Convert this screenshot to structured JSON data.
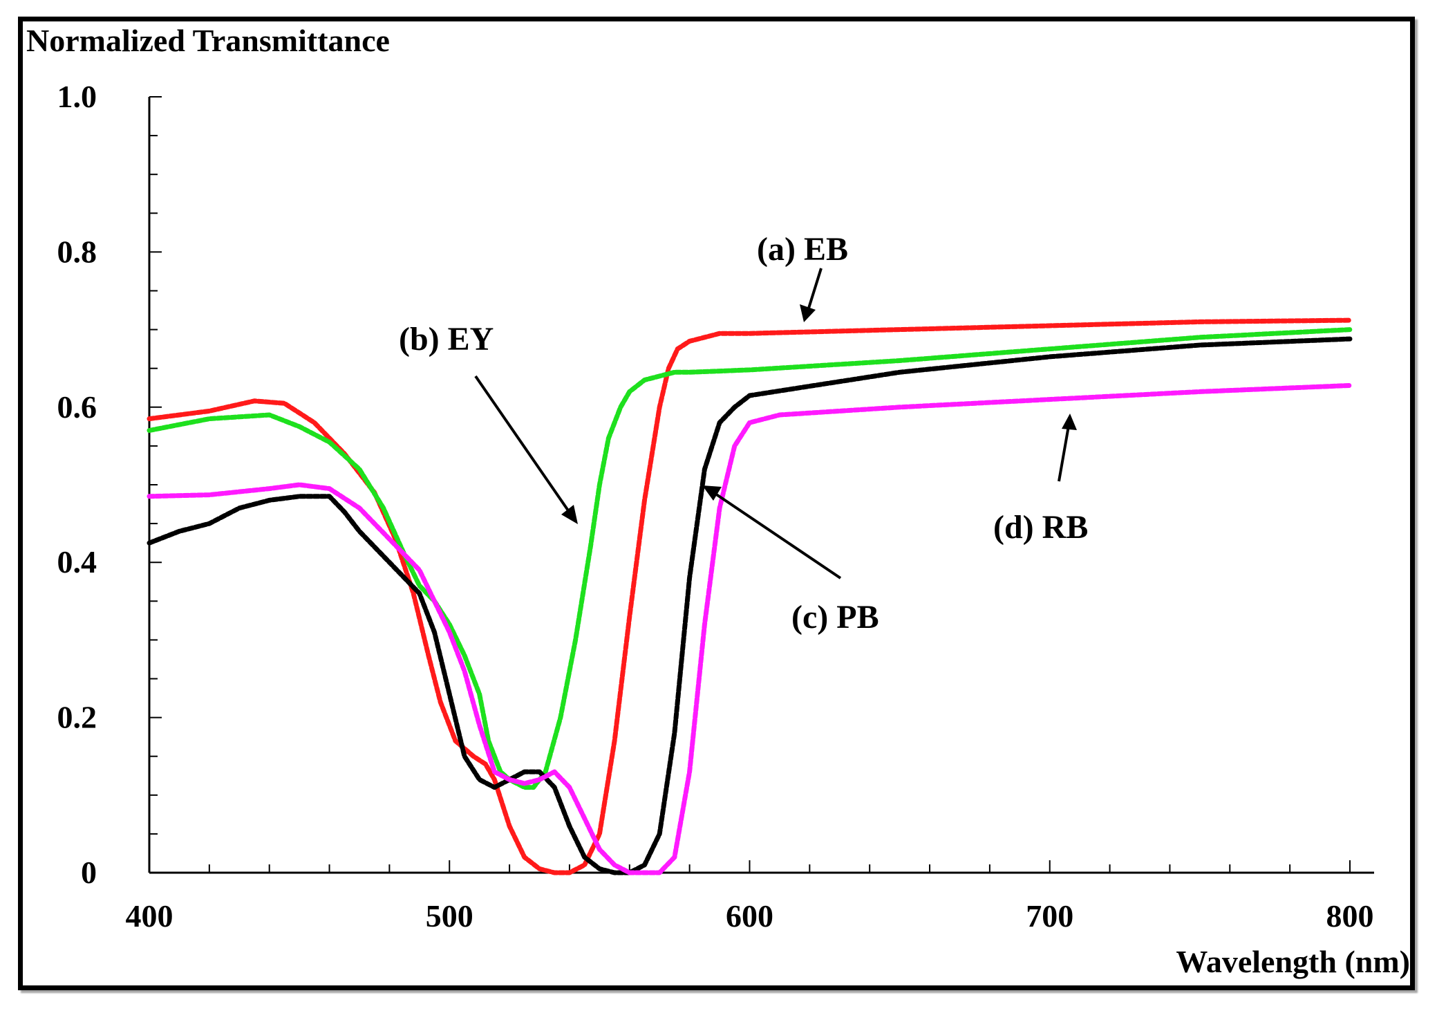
{
  "chart_data": {
    "type": "line",
    "title": "",
    "ylabel": "Normalized Transmittance",
    "xlabel": "Wavelength (nm)",
    "xlim": [
      400,
      800
    ],
    "ylim": [
      0,
      1.0
    ],
    "x_ticks": [
      400,
      500,
      600,
      700,
      800
    ],
    "x_tick_labels": [
      "400",
      "500",
      "600",
      "700",
      "800"
    ],
    "y_ticks": [
      0,
      0.2,
      0.4,
      0.6,
      0.8,
      1.0
    ],
    "y_tick_labels": [
      "0",
      "0.2",
      "0.4",
      "0.6",
      "0.8",
      "1.0"
    ],
    "grid": false,
    "series": [
      {
        "name": "(a) EB",
        "color": "#ff1a1a",
        "x": [
          400,
          420,
          435,
          445,
          455,
          465,
          475,
          482,
          488,
          493,
          497,
          502,
          508,
          512,
          515,
          520,
          525,
          530,
          535,
          540,
          545,
          550,
          555,
          560,
          565,
          570,
          573,
          576,
          580,
          585,
          590,
          600,
          650,
          700,
          750,
          800
        ],
        "y": [
          0.585,
          0.595,
          0.608,
          0.605,
          0.58,
          0.54,
          0.49,
          0.43,
          0.36,
          0.28,
          0.22,
          0.17,
          0.15,
          0.14,
          0.12,
          0.06,
          0.02,
          0.005,
          0.0,
          0.0,
          0.01,
          0.05,
          0.17,
          0.33,
          0.48,
          0.6,
          0.65,
          0.675,
          0.685,
          0.69,
          0.695,
          0.695,
          0.7,
          0.705,
          0.71,
          0.712
        ]
      },
      {
        "name": "(b) EY",
        "color": "#1ee01e",
        "x": [
          400,
          420,
          440,
          450,
          460,
          470,
          478,
          485,
          490,
          495,
          500,
          505,
          510,
          513,
          517,
          520,
          525,
          528,
          532,
          537,
          542,
          547,
          550,
          553,
          557,
          560,
          565,
          570,
          575,
          580,
          600,
          650,
          700,
          750,
          800
        ],
        "y": [
          0.57,
          0.585,
          0.59,
          0.575,
          0.555,
          0.52,
          0.47,
          0.41,
          0.37,
          0.35,
          0.32,
          0.28,
          0.23,
          0.17,
          0.13,
          0.12,
          0.11,
          0.11,
          0.13,
          0.2,
          0.3,
          0.42,
          0.5,
          0.56,
          0.6,
          0.62,
          0.635,
          0.64,
          0.645,
          0.645,
          0.648,
          0.66,
          0.675,
          0.69,
          0.7
        ]
      },
      {
        "name": "(c) PB",
        "color": "#000000",
        "x": [
          400,
          410,
          420,
          430,
          440,
          450,
          460,
          465,
          470,
          480,
          490,
          495,
          500,
          505,
          510,
          515,
          520,
          525,
          530,
          535,
          540,
          545,
          550,
          555,
          560,
          565,
          570,
          575,
          580,
          585,
          590,
          595,
          600,
          625,
          650,
          700,
          750,
          800
        ],
        "y": [
          0.425,
          0.44,
          0.45,
          0.47,
          0.48,
          0.485,
          0.485,
          0.465,
          0.44,
          0.4,
          0.36,
          0.31,
          0.23,
          0.15,
          0.12,
          0.11,
          0.12,
          0.13,
          0.13,
          0.11,
          0.06,
          0.02,
          0.005,
          0.0,
          0.0,
          0.01,
          0.05,
          0.18,
          0.38,
          0.52,
          0.58,
          0.6,
          0.615,
          0.63,
          0.645,
          0.665,
          0.68,
          0.688
        ]
      },
      {
        "name": "(d) RB",
        "color": "#ff1aff",
        "x": [
          400,
          420,
          440,
          450,
          460,
          470,
          480,
          490,
          495,
          500,
          505,
          510,
          515,
          520,
          525,
          530,
          535,
          540,
          545,
          550,
          555,
          560,
          565,
          570,
          575,
          580,
          585,
          590,
          595,
          600,
          610,
          650,
          700,
          750,
          800
        ],
        "y": [
          0.485,
          0.487,
          0.495,
          0.5,
          0.495,
          0.47,
          0.43,
          0.39,
          0.35,
          0.31,
          0.26,
          0.19,
          0.13,
          0.12,
          0.115,
          0.12,
          0.13,
          0.11,
          0.07,
          0.03,
          0.01,
          0.0,
          0.0,
          0.0,
          0.02,
          0.13,
          0.32,
          0.47,
          0.55,
          0.58,
          0.59,
          0.6,
          0.61,
          0.62,
          0.628
        ]
      }
    ],
    "annotations": [
      {
        "text": "(a) EB",
        "series": "(a) EB"
      },
      {
        "text": "(b) EY",
        "series": "(b) EY"
      },
      {
        "text": "(c) PB",
        "series": "(c) PB"
      },
      {
        "text": "(d) RB",
        "series": "(d) RB"
      }
    ]
  }
}
